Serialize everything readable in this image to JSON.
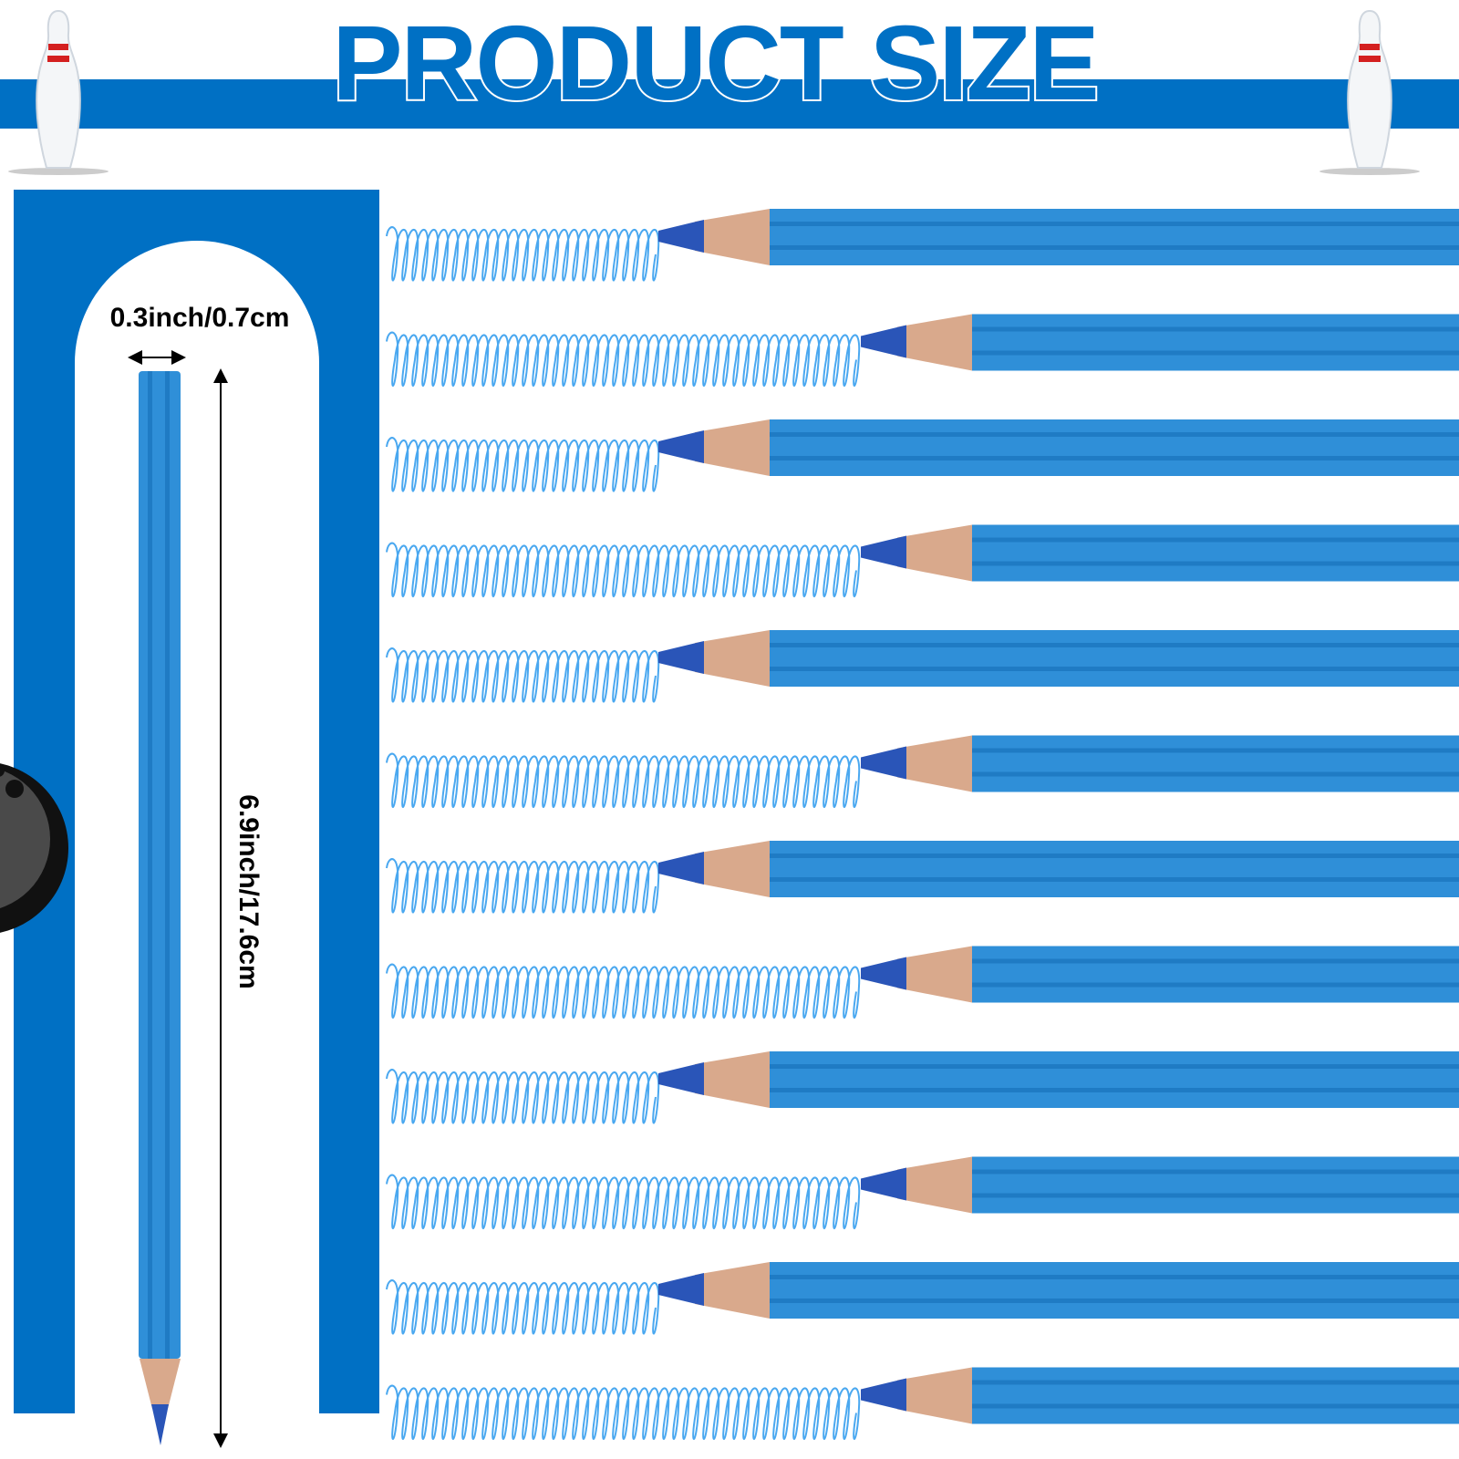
{
  "title": "PRODUCT SIZE",
  "dimensions": {
    "width_label": "0.3inch/0.7cm",
    "length_label": "6.9inch/17.6cm"
  },
  "colors": {
    "brand_blue": "#0070c4",
    "pencil_blue": "#2f8fd8",
    "lead_blue": "#2a55b8",
    "wood": "#d9a98c",
    "scribble": "#4aa8f0"
  },
  "pencil_rows": 12
}
